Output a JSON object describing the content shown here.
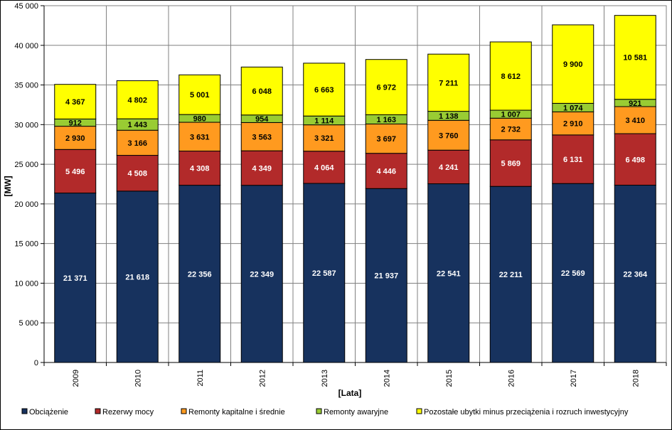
{
  "chart_data": {
    "type": "bar",
    "stacked": true,
    "xlabel": "[Lata]",
    "ylabel": "[MW]",
    "ylim": [
      0,
      45000
    ],
    "ytick_step": 5000,
    "grid": true,
    "legend_position": "bottom",
    "categories": [
      "2009",
      "2010",
      "2011",
      "2012",
      "2013",
      "2014",
      "2015",
      "2016",
      "2017",
      "2018"
    ],
    "series": [
      {
        "name": "Obciążenie",
        "color": "#17325e",
        "label_color": "#ffffff",
        "values": [
          21371,
          21618,
          22356,
          22349,
          22587,
          21937,
          22541,
          22211,
          22569,
          22364
        ],
        "labels": [
          "21 371",
          "21 618",
          "22 356",
          "22 349",
          "22 587",
          "21 937",
          "22 541",
          "22 211",
          "22 569",
          "22 364"
        ]
      },
      {
        "name": "Rezerwy mocy",
        "color": "#b22a2a",
        "label_color": "#ffffff",
        "values": [
          5496,
          4508,
          4308,
          4349,
          4064,
          4446,
          4241,
          5869,
          6131,
          6498
        ],
        "labels": [
          "5 496",
          "4 508",
          "4 308",
          "4 349",
          "4 064",
          "4 446",
          "4 241",
          "5 869",
          "6 131",
          "6 498"
        ]
      },
      {
        "name": "Remonty kapitalne i średnie",
        "color": "#ff9a1f",
        "label_color": "#000000",
        "values": [
          2930,
          3166,
          3631,
          3563,
          3321,
          3697,
          3760,
          2732,
          2910,
          3410
        ],
        "labels": [
          "2 930",
          "3 166",
          "3 631",
          "3 563",
          "3 321",
          "3 697",
          "3 760",
          "2 732",
          "2 910",
          "3 410"
        ]
      },
      {
        "name": "Remonty awaryjne",
        "color": "#99cc33",
        "label_color": "#000000",
        "values": [
          912,
          1443,
          980,
          954,
          1114,
          1163,
          1138,
          1007,
          1074,
          921
        ],
        "labels": [
          "912",
          "1 443",
          "980",
          "954",
          "1 114",
          "1 163",
          "1 138",
          "1 007",
          "1 074",
          "921"
        ]
      },
      {
        "name": "Pozostałe ubytki minus przeciążenia i rozruch inwestycyjny",
        "color": "#ffff00",
        "label_color": "#000000",
        "values": [
          4367,
          4802,
          5001,
          6048,
          6663,
          6972,
          7211,
          8612,
          9900,
          10581
        ],
        "labels": [
          "4 367",
          "4 802",
          "5 001",
          "6 048",
          "6 663",
          "6 972",
          "7 211",
          "8 612",
          "9 900",
          "10 581"
        ]
      }
    ],
    "yticks": [
      "0",
      "5 000",
      "10 000",
      "15 000",
      "20 000",
      "25 000",
      "30 000",
      "35 000",
      "40 000",
      "45 000"
    ]
  }
}
